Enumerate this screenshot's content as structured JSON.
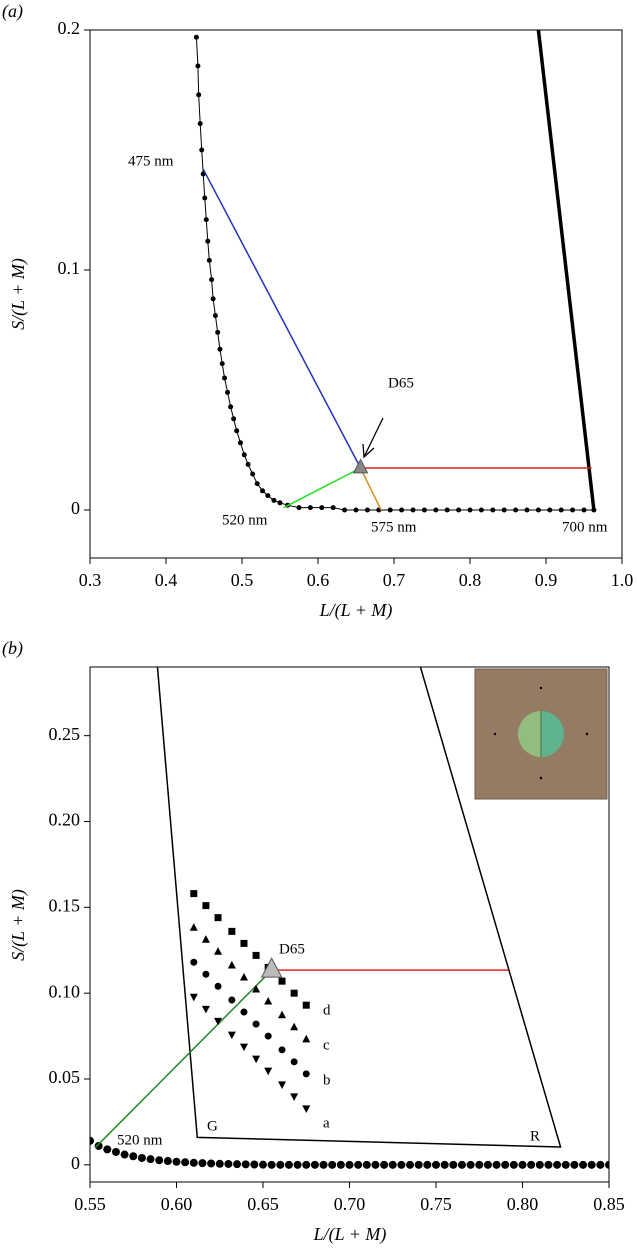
{
  "chart_data": [
    {
      "type": "scatter",
      "panel_label": "(a)",
      "xlabel": "L/(L + M)",
      "ylabel": "S/(L + M)",
      "xlim": [
        0.3,
        1.0
      ],
      "ylim": [
        -0.02,
        0.2
      ],
      "xticks": [
        0.3,
        0.4,
        0.5,
        0.6,
        0.7,
        0.8,
        0.9,
        {
          "value": 1,
          "label": "1.0"
        }
      ],
      "yticks": [
        0,
        0.1,
        0.2
      ],
      "annotations": [
        "475 nm",
        "D65",
        "520 nm",
        "575 nm",
        "700 nm"
      ],
      "series": [
        {
          "color": "#000000",
          "marker": "circle",
          "line_width": 1,
          "x": [
            0.44,
            0.442,
            0.443,
            0.445,
            0.447,
            0.449,
            0.451,
            0.453,
            0.455,
            0.457,
            0.46,
            0.462,
            0.465,
            0.468,
            0.471,
            0.474,
            0.477,
            0.481,
            0.485,
            0.489,
            0.493,
            0.498,
            0.503,
            0.508,
            0.514,
            0.52,
            0.527,
            0.534,
            0.542,
            0.55,
            0.56,
            0.575,
            0.59,
            0.605,
            0.62,
            0.635,
            0.65,
            0.665,
            0.68,
            0.695,
            0.71,
            0.725,
            0.74,
            0.755,
            0.77,
            0.785,
            0.8,
            0.815,
            0.83,
            0.845,
            0.86,
            0.875,
            0.89,
            0.905,
            0.92,
            0.935,
            0.95,
            0.963
          ],
          "y": [
            0.197,
            0.185,
            0.173,
            0.161,
            0.15,
            0.14,
            0.13,
            0.121,
            0.112,
            0.104,
            0.096,
            0.088,
            0.081,
            0.074,
            0.067,
            0.061,
            0.055,
            0.049,
            0.043,
            0.038,
            0.033,
            0.028,
            0.023,
            0.019,
            0.015,
            0.011,
            0.008,
            0.006,
            0.004,
            0.003,
            0.002,
            0.001,
            0.001,
            0.001,
            0.001,
            0,
            0,
            0,
            0,
            0,
            0,
            0,
            0,
            0,
            0,
            0,
            0,
            0,
            0,
            0,
            0,
            0,
            0,
            0,
            0,
            0,
            0,
            0
          ]
        },
        {
          "color": "#000000",
          "line_width": 3.5,
          "x": [
            0.89,
            0.963
          ],
          "y": [
            0.2,
            0
          ]
        },
        {
          "color": "#2233bb",
          "line_width": 1.5,
          "x": [
            0.449,
            0.656
          ],
          "y": [
            0.142,
            0.0175
          ]
        },
        {
          "color": "#22dd22",
          "line_width": 1.5,
          "x": [
            0.555,
            0.656
          ],
          "y": [
            0.001,
            0.0175
          ]
        },
        {
          "color": "#e08a20",
          "line_width": 1.5,
          "x": [
            0.656,
            0.683
          ],
          "y": [
            0.0175,
            0
          ]
        },
        {
          "color": "#e02222",
          "line_width": 1.5,
          "x": [
            0.656,
            0.96
          ],
          "y": [
            0.0175,
            0.0175
          ]
        },
        {
          "color": "#888888",
          "marker": "triangle-up",
          "marker_size": 7,
          "x": [
            0.656
          ],
          "y": [
            0.0175
          ]
        }
      ]
    },
    {
      "type": "scatter",
      "panel_label": "(b)",
      "xlabel": "L/(L + M)",
      "ylabel": "S/(L + M)",
      "xlim": [
        0.55,
        0.85
      ],
      "ylim": [
        -0.01,
        0.29
      ],
      "xticks": [
        0.55,
        {
          "value": 0.6,
          "label": "0.60"
        },
        0.65,
        {
          "value": 0.7,
          "label": "0.70"
        },
        0.75,
        {
          "value": 0.8,
          "label": "0.80"
        },
        0.85
      ],
      "yticks": [
        0,
        0.05,
        {
          "value": 0.1,
          "label": "0.10"
        },
        0.15,
        {
          "value": 0.2,
          "label": "0.20"
        },
        0.25
      ],
      "annotations": [
        "520 nm",
        "D65",
        "G",
        "R",
        "d",
        "c",
        "b",
        "a"
      ],
      "annotation_colors": [
        "#000000",
        "#000000",
        "#228822",
        "#e02222",
        "#000000",
        "#000000",
        "#000000",
        "#000000"
      ],
      "series": [
        {
          "color": "#000000",
          "line_width": 1.5,
          "x": [
            0.589,
            0.612,
            0.822,
            0.741
          ],
          "y": [
            0.29,
            0.016,
            0.0104,
            0.29
          ]
        },
        {
          "color": "#000000",
          "marker": "circle",
          "marker_size": 4,
          "x": [
            0.55,
            0.555,
            0.56,
            0.565,
            0.57,
            0.575,
            0.58,
            0.585,
            0.59,
            0.595,
            0.6,
            0.605,
            0.61,
            0.615,
            0.62,
            0.625,
            0.63,
            0.635,
            0.64,
            0.645,
            0.65,
            0.655,
            0.66,
            0.665,
            0.67,
            0.675,
            0.68,
            0.685,
            0.69,
            0.695,
            0.7,
            0.705,
            0.71,
            0.715,
            0.72,
            0.725,
            0.73,
            0.735,
            0.74,
            0.745,
            0.75,
            0.755,
            0.76,
            0.765,
            0.77,
            0.775,
            0.78,
            0.785,
            0.79,
            0.795,
            0.8,
            0.805,
            0.81,
            0.815,
            0.82,
            0.825,
            0.83,
            0.835,
            0.84,
            0.845,
            0.85
          ],
          "y": [
            0.014,
            0.011,
            0.009,
            0.0075,
            0.006,
            0.005,
            0.004,
            0.0033,
            0.0027,
            0.0022,
            0.0018,
            0.0015,
            0.0012,
            0.001,
            0.0008,
            0.0006,
            0.0005,
            0.0004,
            0.0003,
            0.0002,
            0.0001,
            0,
            0,
            0,
            0,
            0,
            0,
            0,
            0,
            0,
            0,
            0,
            0,
            0,
            0,
            0,
            0,
            0,
            0,
            0,
            0,
            0,
            0,
            0,
            0,
            0,
            0,
            0,
            0,
            0,
            0,
            0,
            0,
            0,
            0,
            0,
            0,
            0,
            0,
            0,
            0
          ]
        },
        {
          "color": "#228822",
          "line_width": 1.5,
          "x": [
            0.553,
            0.655
          ],
          "y": [
            0.01,
            0.1134
          ]
        },
        {
          "color": "#e02222",
          "line_width": 1.5,
          "x": [
            0.655,
            0.792
          ],
          "y": [
            0.1134,
            0.1134
          ]
        },
        {
          "color": "#000000",
          "marker": "square",
          "marker_size": 3.5,
          "x": [
            0.61,
            0.617,
            0.624,
            0.632,
            0.639,
            0.646,
            0.653,
            0.661,
            0.668,
            0.675
          ],
          "y": [
            0.158,
            0.151,
            0.144,
            0.136,
            0.129,
            0.122,
            0.115,
            0.107,
            0.1,
            0.093
          ]
        },
        {
          "color": "#000000",
          "marker": "triangle-up",
          "marker_size": 4,
          "x": [
            0.61,
            0.617,
            0.624,
            0.632,
            0.639,
            0.646,
            0.653,
            0.661,
            0.668,
            0.675
          ],
          "y": [
            0.138,
            0.131,
            0.124,
            0.116,
            0.109,
            0.102,
            0.095,
            0.087,
            0.08,
            0.073
          ]
        },
        {
          "color": "#000000",
          "marker": "circle",
          "marker_size": 3.5,
          "x": [
            0.61,
            0.617,
            0.624,
            0.632,
            0.639,
            0.646,
            0.653,
            0.661,
            0.668,
            0.675
          ],
          "y": [
            0.118,
            0.111,
            0.104,
            0.096,
            0.089,
            0.082,
            0.075,
            0.067,
            0.06,
            0.053
          ]
        },
        {
          "color": "#000000",
          "marker": "triangle-down",
          "marker_size": 4,
          "x": [
            0.61,
            0.617,
            0.624,
            0.632,
            0.639,
            0.646,
            0.653,
            0.661,
            0.668,
            0.675
          ],
          "y": [
            0.098,
            0.091,
            0.084,
            0.076,
            0.069,
            0.062,
            0.055,
            0.047,
            0.04,
            0.033
          ]
        },
        {
          "color": "#bbbbbb",
          "marker": "triangle-up",
          "marker_size": 10,
          "x": [
            0.655
          ],
          "y": [
            0.1134
          ]
        }
      ]
    }
  ]
}
